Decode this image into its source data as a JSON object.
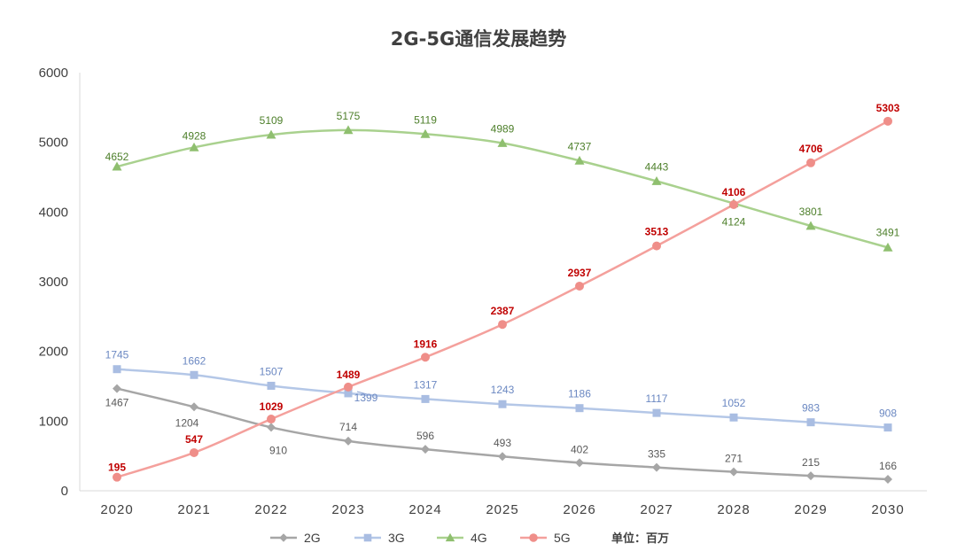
{
  "chart_data": {
    "type": "line",
    "title": "2G-5G通信发展趋势",
    "unit_note": "单位：百万",
    "xlabel": "",
    "ylabel": "",
    "ylim": [
      0,
      6000
    ],
    "yticks": [
      0,
      1000,
      2000,
      3000,
      4000,
      5000,
      6000
    ],
    "categories": [
      "2020",
      "2021",
      "2022",
      "2023",
      "2024",
      "2025",
      "2026",
      "2027",
      "2028",
      "2029",
      "2030"
    ],
    "legend_position": "bottom",
    "series": [
      {
        "name": "2G",
        "color": "#a6a6a6",
        "label_color": "#595959",
        "marker": "diamond",
        "values": [
          1467,
          1204,
          910,
          714,
          596,
          493,
          402,
          335,
          271,
          215,
          166
        ],
        "labels": [
          "1467",
          "1204",
          "910",
          "714",
          "596",
          "493",
          "402",
          "335",
          "271",
          "215",
          "166"
        ]
      },
      {
        "name": "3G",
        "color": "#b4c7e7",
        "marker_color": "#a9bde2",
        "label_color": "#6b88c2",
        "marker": "square",
        "values": [
          1745,
          1662,
          1507,
          1399,
          1317,
          1243,
          1186,
          1117,
          1052,
          983,
          908
        ],
        "labels": [
          "1745",
          "1662",
          "1507",
          "1399",
          "1317",
          "1243",
          "1186",
          "1117",
          "1052",
          "983",
          "908"
        ]
      },
      {
        "name": "4G",
        "color": "#a9d18e",
        "marker_color": "#8fbf6f",
        "label_color": "#4d7f2a",
        "marker": "triangle",
        "values": [
          4652,
          4928,
          5109,
          5175,
          5119,
          4989,
          4737,
          4443,
          4124,
          3801,
          3491
        ],
        "labels": [
          "4652",
          "4928",
          "5109",
          "5175",
          "5119",
          "4989",
          "4737",
          "4443",
          "4124",
          "3801",
          "3491"
        ]
      },
      {
        "name": "5G",
        "color": "#f4a09c",
        "marker_color": "#ef8e89",
        "label_color": "#c00000",
        "marker": "circle",
        "values": [
          195,
          547,
          1029,
          1489,
          1916,
          2387,
          2937,
          3513,
          4106,
          4706,
          5303
        ],
        "labels": [
          "195",
          "547",
          "1029",
          "1489",
          "1916",
          "2387",
          "2937",
          "3513",
          "4106",
          "4706",
          "5303"
        ]
      }
    ]
  }
}
